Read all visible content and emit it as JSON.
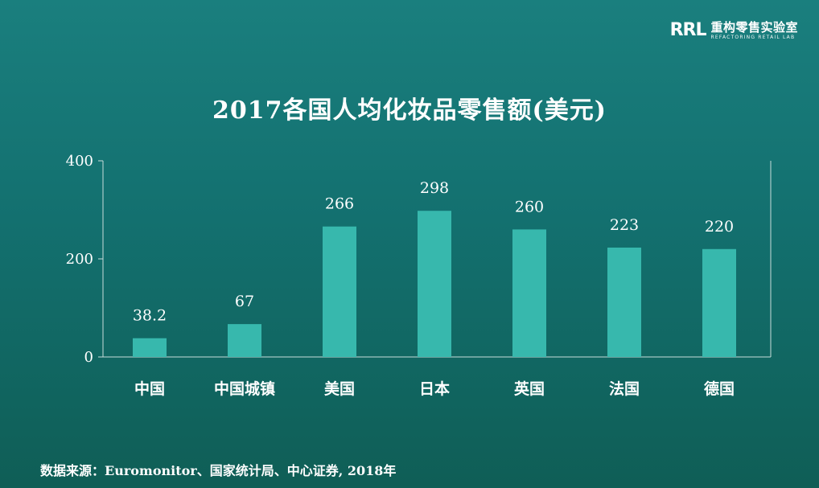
{
  "logo": {
    "mark": "RRL",
    "name_cn": "重构零售实验室",
    "name_en": "REFACTORING RETAIL LAB"
  },
  "source": "数据来源：Euromonitor、国家统计局、中心证券, 2018年",
  "colors": {
    "bar": "#37b8ad",
    "axis": "#c8dcda",
    "text": "#ffffff"
  },
  "chart_data": {
    "type": "bar",
    "title": "2017各国人均化妆品零售额(美元)",
    "categories": [
      "中国",
      "中国城镇",
      "美国",
      "日本",
      "英国",
      "法国",
      "德国"
    ],
    "values": [
      38.2,
      67,
      266,
      298,
      260,
      223,
      220
    ],
    "value_labels": [
      "38.2",
      "67",
      "266",
      "298",
      "260",
      "223",
      "220"
    ],
    "xlabel": "",
    "ylabel": "",
    "ylim": [
      0,
      400
    ],
    "yticks": [
      0,
      200,
      400
    ],
    "grid": false,
    "legend": "none"
  }
}
